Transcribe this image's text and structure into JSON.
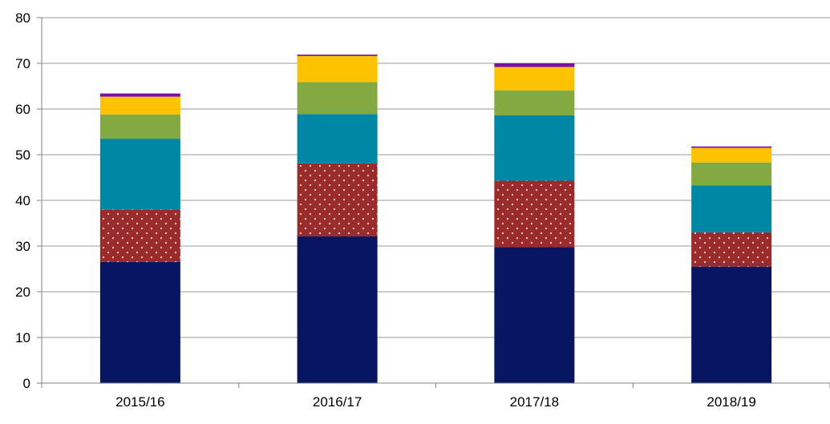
{
  "chart_data": {
    "type": "bar",
    "stacked": true,
    "categories": [
      "2015/16",
      "2016/17",
      "2017/18",
      "2018/19"
    ],
    "series": [
      {
        "color": "#061661",
        "pattern": "solid",
        "values": [
          26.5,
          32.1,
          29.8,
          25.5
        ]
      },
      {
        "color": "#9a2b2b",
        "pattern": "dotted",
        "values": [
          11.5,
          16.0,
          14.5,
          7.5
        ]
      },
      {
        "color": "#0087a4",
        "pattern": "solid",
        "values": [
          15.5,
          10.8,
          14.3,
          10.3
        ]
      },
      {
        "color": "#83a942",
        "pattern": "solid",
        "values": [
          5.3,
          7.0,
          5.5,
          5.0
        ]
      },
      {
        "color": "#fdc300",
        "pattern": "solid",
        "values": [
          3.9,
          5.7,
          5.1,
          3.2
        ]
      },
      {
        "color": "#7a10a8",
        "pattern": "solid",
        "values": [
          0.7,
          0.3,
          0.8,
          0.3
        ]
      }
    ],
    "yticks": [
      0,
      10,
      20,
      30,
      40,
      50,
      60,
      70,
      80
    ],
    "ylim": [
      0,
      80
    ],
    "grid": true,
    "legend": "none",
    "title": "",
    "xlabel": "",
    "ylabel": ""
  }
}
